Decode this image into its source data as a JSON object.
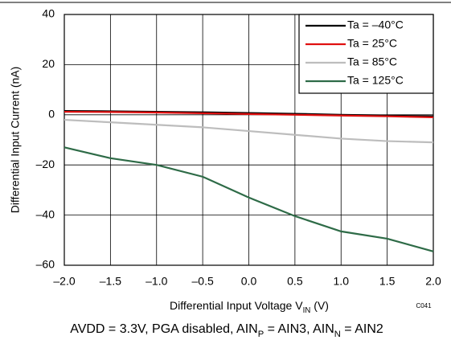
{
  "chart_data": {
    "type": "line",
    "ylabel": "Differential Input Current (nA)",
    "xlabel": [
      "Differential  Input Voltage V",
      "IN",
      " (V)"
    ],
    "code": "C041",
    "footnote": [
      "AVDD = 3.3V, PGA disabled, AIN",
      "P",
      " = AIN3, AIN",
      "N",
      " = AIN2"
    ],
    "x": [
      -2.0,
      -1.5,
      -1.0,
      -0.5,
      0.0,
      0.5,
      1.0,
      1.5,
      2.0
    ],
    "series": [
      {
        "name": "Ta = –40°C",
        "color": "#000000",
        "values": [
          1.5,
          1.4,
          1.2,
          1.0,
          0.7,
          0.4,
          0.0,
          -0.3,
          -0.6
        ]
      },
      {
        "name": "Ta = 25°C",
        "color": "#e01010",
        "values": [
          1.2,
          1.1,
          0.9,
          0.6,
          0.3,
          0.0,
          -0.3,
          -0.6,
          -1.0
        ]
      },
      {
        "name": "Ta = 85°C",
        "color": "#bdbdbd",
        "values": [
          -2,
          -3,
          -4,
          -5,
          -6.5,
          -8,
          -9.5,
          -10.5,
          -11
        ]
      },
      {
        "name": "Ta = 125°C",
        "color": "#2e6b47",
        "values": [
          -13,
          -17.3,
          -20,
          -24.7,
          -33,
          -40.4,
          -46.5,
          -49.4,
          -54.5
        ]
      }
    ],
    "xlim": [
      -2.0,
      2.0
    ],
    "xticks": [
      {
        "value": -2.0,
        "label": "–2.0"
      },
      {
        "value": -1.5,
        "label": "–1.5"
      },
      {
        "value": -1.0,
        "label": "–1.0"
      },
      {
        "value": -0.5,
        "label": "–0.5"
      },
      {
        "value": 0.0,
        "label": "0.0"
      },
      {
        "value": 0.5,
        "label": "0.5"
      },
      {
        "value": 1.0,
        "label": "1.0"
      },
      {
        "value": 1.5,
        "label": "1.5"
      },
      {
        "value": 2.0,
        "label": "2.0"
      }
    ],
    "ylim": [
      -60,
      40
    ],
    "yticks": [
      40,
      20,
      0,
      {
        "value": -20,
        "label": "–20"
      },
      {
        "value": -40,
        "label": "–40"
      },
      {
        "value": -60,
        "label": "–60"
      }
    ],
    "grid": true,
    "legend": "top-right"
  }
}
